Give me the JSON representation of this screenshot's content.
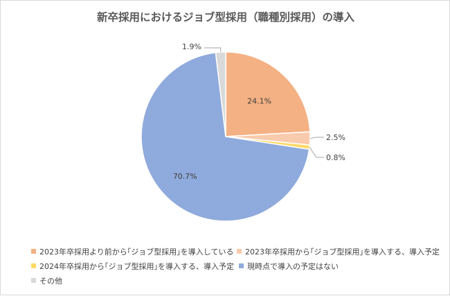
{
  "chart_data": {
    "type": "pie",
    "title": "新卒採用におけるジョブ型採用（職種別採用）の導入",
    "categories": [
      "2023年卒採用より前から｢ジョブ型採用｣を導入している",
      "2023年卒採用から｢ジョブ型採用｣を導入する、導入予定",
      "2024年卒採用から｢ジョブ型採用｣を導入する、導入予定",
      "現時点で導入の予定はない",
      "その他"
    ],
    "values": [
      24.1,
      2.5,
      0.8,
      70.7,
      1.9
    ],
    "value_labels": [
      "24.1%",
      "2.5%",
      "0.8%",
      "70.7%",
      "1.9%"
    ],
    "colors": [
      "#f4b183",
      "#f8cbad",
      "#ffd966",
      "#8faadc",
      "#d9d9d9"
    ],
    "legend_position": "bottom"
  }
}
